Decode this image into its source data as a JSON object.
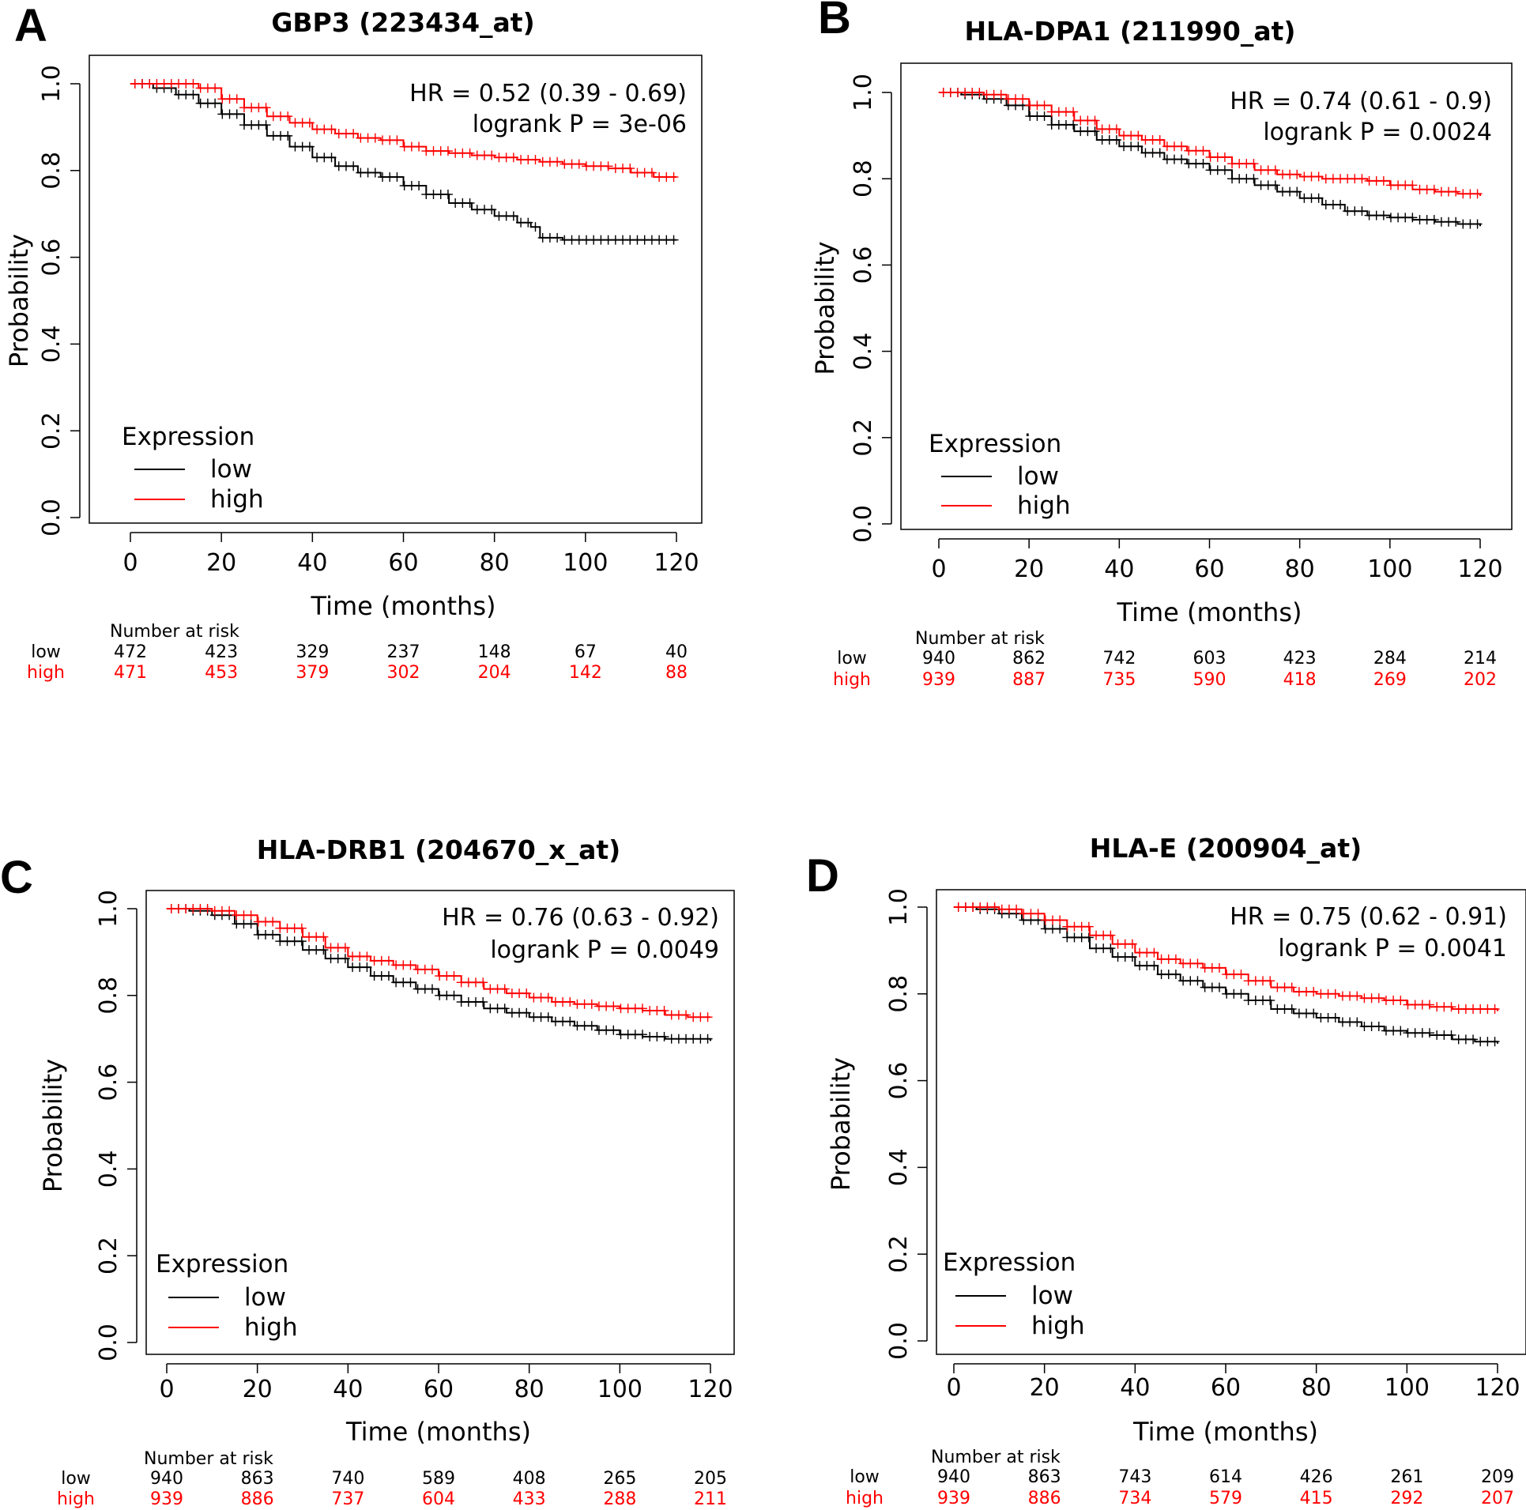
{
  "chart_data": [
    {
      "type": "line",
      "panel_label": "A",
      "title": "GBP3 (223434_at)",
      "xlabel": "Time (months)",
      "ylabel": "Probability",
      "xlim": [
        0,
        120
      ],
      "ylim": [
        0,
        1
      ],
      "x_ticks": [
        "0",
        "20",
        "40",
        "60",
        "80",
        "100",
        "120"
      ],
      "y_ticks": [
        "0.0",
        "0.2",
        "0.4",
        "0.6",
        "0.8",
        "1.0"
      ],
      "hr_text": "HR = 0.52 (0.39 - 0.69)",
      "p_text": "logrank P = 3e-06",
      "legend_title": "Expression",
      "legend_position": "bottom-left",
      "series": [
        {
          "name": "low",
          "color": "#000000",
          "x": [
            0,
            5,
            10,
            15,
            20,
            25,
            30,
            35,
            40,
            45,
            50,
            55,
            60,
            65,
            70,
            75,
            80,
            85,
            88,
            90,
            95,
            100,
            105,
            110,
            115,
            120
          ],
          "y": [
            1.0,
            0.99,
            0.975,
            0.955,
            0.93,
            0.905,
            0.88,
            0.855,
            0.83,
            0.81,
            0.795,
            0.785,
            0.765,
            0.745,
            0.725,
            0.71,
            0.695,
            0.68,
            0.67,
            0.645,
            0.64,
            0.64,
            0.64,
            0.64,
            0.64,
            0.64
          ]
        },
        {
          "name": "high",
          "color": "#ff0000",
          "x": [
            0,
            5,
            10,
            15,
            20,
            25,
            30,
            35,
            40,
            45,
            50,
            55,
            60,
            65,
            70,
            75,
            80,
            85,
            90,
            95,
            100,
            105,
            110,
            115,
            120
          ],
          "y": [
            1.0,
            1.0,
            1.0,
            0.99,
            0.965,
            0.945,
            0.925,
            0.91,
            0.895,
            0.885,
            0.875,
            0.87,
            0.855,
            0.845,
            0.84,
            0.835,
            0.83,
            0.825,
            0.82,
            0.815,
            0.81,
            0.805,
            0.795,
            0.785,
            0.785
          ]
        }
      ],
      "risk_table": {
        "header": "Number at risk",
        "low_label": "low",
        "high_label": "high",
        "low": [
          "472",
          "423",
          "329",
          "237",
          "148",
          "67",
          "40"
        ],
        "high": [
          "471",
          "453",
          "379",
          "302",
          "204",
          "142",
          "88"
        ]
      }
    },
    {
      "type": "line",
      "panel_label": "B",
      "title": "HLA-DPA1 (211990_at)",
      "xlabel": "Time (months)",
      "ylabel": "Probability",
      "xlim": [
        0,
        120
      ],
      "ylim": [
        0,
        1
      ],
      "x_ticks": [
        "0",
        "20",
        "40",
        "60",
        "80",
        "100",
        "120"
      ],
      "y_ticks": [
        "0.0",
        "0.2",
        "0.4",
        "0.6",
        "0.8",
        "1.0"
      ],
      "hr_text": "HR = 0.74 (0.61 - 0.9)",
      "p_text": "logrank P = 0.0024",
      "legend_title": "Expression",
      "legend_position": "bottom-left",
      "series": [
        {
          "name": "low",
          "color": "#000000",
          "x": [
            0,
            5,
            10,
            15,
            20,
            25,
            30,
            35,
            40,
            45,
            50,
            55,
            60,
            65,
            70,
            75,
            80,
            85,
            90,
            95,
            100,
            105,
            110,
            115,
            120
          ],
          "y": [
            1.0,
            0.995,
            0.985,
            0.97,
            0.945,
            0.925,
            0.91,
            0.89,
            0.875,
            0.86,
            0.845,
            0.835,
            0.82,
            0.8,
            0.785,
            0.77,
            0.755,
            0.74,
            0.725,
            0.715,
            0.71,
            0.705,
            0.7,
            0.695,
            0.69
          ]
        },
        {
          "name": "high",
          "color": "#ff0000",
          "x": [
            0,
            5,
            10,
            15,
            20,
            25,
            30,
            35,
            40,
            45,
            50,
            55,
            60,
            65,
            70,
            75,
            80,
            85,
            90,
            95,
            100,
            105,
            110,
            115,
            120
          ],
          "y": [
            1.0,
            1.0,
            0.995,
            0.985,
            0.97,
            0.955,
            0.935,
            0.915,
            0.9,
            0.89,
            0.875,
            0.865,
            0.85,
            0.835,
            0.82,
            0.81,
            0.805,
            0.8,
            0.8,
            0.795,
            0.785,
            0.775,
            0.77,
            0.765,
            0.76
          ]
        }
      ],
      "risk_table": {
        "header": "Number at risk",
        "low_label": "low",
        "high_label": "high",
        "low": [
          "940",
          "862",
          "742",
          "603",
          "423",
          "284",
          "214"
        ],
        "high": [
          "939",
          "887",
          "735",
          "590",
          "418",
          "269",
          "202"
        ]
      }
    },
    {
      "type": "line",
      "panel_label": "C",
      "title": "HLA-DRB1 (204670_x_at)",
      "xlabel": "Time (months)",
      "ylabel": "Probability",
      "xlim": [
        0,
        120
      ],
      "ylim": [
        0,
        1
      ],
      "x_ticks": [
        "0",
        "20",
        "40",
        "60",
        "80",
        "100",
        "120"
      ],
      "y_ticks": [
        "0.0",
        "0.2",
        "0.4",
        "0.6",
        "0.8",
        "1.0"
      ],
      "hr_text": "HR = 0.76 (0.63 - 0.92)",
      "p_text": "logrank P = 0.0049",
      "legend_title": "Expression",
      "legend_position": "bottom-left",
      "series": [
        {
          "name": "low",
          "color": "#000000",
          "x": [
            0,
            5,
            10,
            15,
            20,
            25,
            30,
            35,
            40,
            45,
            50,
            55,
            60,
            65,
            70,
            75,
            80,
            85,
            90,
            95,
            100,
            105,
            110,
            115,
            120
          ],
          "y": [
            1.0,
            0.995,
            0.985,
            0.965,
            0.94,
            0.925,
            0.905,
            0.885,
            0.865,
            0.845,
            0.83,
            0.815,
            0.8,
            0.785,
            0.77,
            0.76,
            0.75,
            0.74,
            0.73,
            0.72,
            0.71,
            0.705,
            0.7,
            0.7,
            0.695
          ]
        },
        {
          "name": "high",
          "color": "#ff0000",
          "x": [
            0,
            5,
            10,
            15,
            20,
            25,
            30,
            35,
            40,
            45,
            50,
            55,
            60,
            65,
            70,
            75,
            80,
            85,
            90,
            95,
            100,
            105,
            110,
            115,
            120
          ],
          "y": [
            1.0,
            1.0,
            0.995,
            0.985,
            0.97,
            0.955,
            0.935,
            0.91,
            0.89,
            0.88,
            0.87,
            0.86,
            0.845,
            0.83,
            0.815,
            0.805,
            0.795,
            0.785,
            0.78,
            0.775,
            0.77,
            0.765,
            0.755,
            0.75,
            0.75
          ]
        }
      ],
      "risk_table": {
        "header": "Number at risk",
        "low_label": "low",
        "high_label": "high",
        "low": [
          "940",
          "863",
          "740",
          "589",
          "408",
          "265",
          "205"
        ],
        "high": [
          "939",
          "886",
          "737",
          "604",
          "433",
          "288",
          "211"
        ]
      }
    },
    {
      "type": "line",
      "panel_label": "D",
      "title": "HLA-E (200904_at)",
      "xlabel": "Time (months)",
      "ylabel": "Probability",
      "xlim": [
        0,
        120
      ],
      "ylim": [
        0,
        1
      ],
      "x_ticks": [
        "0",
        "20",
        "40",
        "60",
        "80",
        "100",
        "120"
      ],
      "y_ticks": [
        "0.0",
        "0.2",
        "0.4",
        "0.6",
        "0.8",
        "1.0"
      ],
      "hr_text": "HR = 0.75 (0.62 - 0.91)",
      "p_text": "logrank P = 0.0041",
      "legend_title": "Expression",
      "legend_position": "bottom-left",
      "series": [
        {
          "name": "low",
          "color": "#000000",
          "x": [
            0,
            5,
            10,
            15,
            20,
            25,
            30,
            35,
            40,
            45,
            50,
            55,
            60,
            65,
            70,
            75,
            80,
            85,
            90,
            95,
            100,
            105,
            110,
            115,
            120
          ],
          "y": [
            1.0,
            0.995,
            0.985,
            0.97,
            0.95,
            0.93,
            0.905,
            0.885,
            0.865,
            0.845,
            0.83,
            0.815,
            0.8,
            0.785,
            0.765,
            0.755,
            0.745,
            0.735,
            0.725,
            0.715,
            0.71,
            0.705,
            0.695,
            0.69,
            0.685
          ]
        },
        {
          "name": "high",
          "color": "#ff0000",
          "x": [
            0,
            5,
            10,
            15,
            20,
            25,
            30,
            35,
            40,
            45,
            50,
            55,
            60,
            65,
            70,
            75,
            80,
            85,
            90,
            95,
            100,
            105,
            110,
            115,
            120
          ],
          "y": [
            1.0,
            1.0,
            0.995,
            0.985,
            0.97,
            0.955,
            0.935,
            0.915,
            0.895,
            0.88,
            0.87,
            0.86,
            0.845,
            0.83,
            0.815,
            0.805,
            0.8,
            0.795,
            0.79,
            0.785,
            0.775,
            0.77,
            0.765,
            0.765,
            0.76
          ]
        }
      ],
      "risk_table": {
        "header": "Number at risk",
        "low_label": "low",
        "high_label": "high",
        "low": [
          "940",
          "863",
          "743",
          "614",
          "426",
          "261",
          "209"
        ],
        "high": [
          "939",
          "886",
          "734",
          "579",
          "415",
          "292",
          "207"
        ]
      }
    }
  ]
}
